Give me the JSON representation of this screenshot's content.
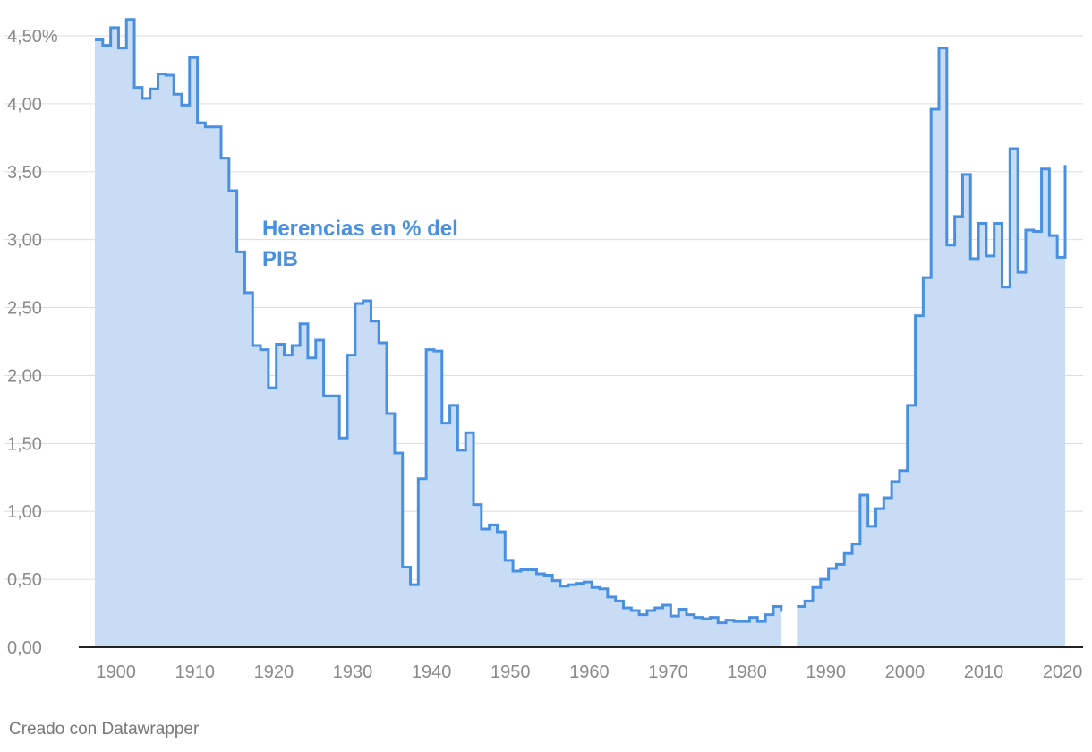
{
  "chart_data": {
    "type": "area",
    "step": true,
    "title": "",
    "xlabel": "",
    "ylabel": "",
    "annotation": [
      "Herencias en % del",
      "PIB"
    ],
    "xlim": [
      1898,
      2021
    ],
    "ylim": [
      0,
      4.5
    ],
    "x_ticks": [
      1900,
      1910,
      1920,
      1930,
      1940,
      1950,
      1960,
      1970,
      1980,
      1990,
      2000,
      2010,
      2020
    ],
    "y_ticks": [
      {
        "value": 0,
        "label": "0,00"
      },
      {
        "value": 0.5,
        "label": "0,50"
      },
      {
        "value": 1,
        "label": "1,00"
      },
      {
        "value": 1.5,
        "label": "1,50"
      },
      {
        "value": 2,
        "label": "2,00"
      },
      {
        "value": 2.5,
        "label": "2,50"
      },
      {
        "value": 3,
        "label": "3,00"
      },
      {
        "value": 3.5,
        "label": "3,50"
      },
      {
        "value": 4,
        "label": "4,00"
      },
      {
        "value": 4.5,
        "label": "4,50%"
      }
    ],
    "grid": true,
    "colors": {
      "line": "#4a90e2",
      "fill": "#c8ddf5",
      "grid": "#dddddd",
      "axis": "#222222",
      "tick": "#8a8a8a"
    },
    "series": [
      {
        "segments": [
          {
            "x": [
              1898,
              1899,
              1900,
              1901,
              1902,
              1903,
              1904,
              1905,
              1906,
              1907,
              1908,
              1909,
              1910,
              1911,
              1912,
              1913,
              1914,
              1915,
              1916,
              1917,
              1918,
              1919,
              1920,
              1921,
              1922,
              1923,
              1924,
              1925,
              1926,
              1927,
              1928,
              1929,
              1930,
              1931,
              1932,
              1933,
              1934,
              1935,
              1936,
              1937,
              1938,
              1939,
              1940,
              1941,
              1942,
              1943,
              1944,
              1945,
              1946,
              1947,
              1948,
              1949,
              1950,
              1951,
              1952,
              1953,
              1954,
              1955,
              1956,
              1957,
              1958,
              1959,
              1960,
              1961,
              1962,
              1963,
              1964,
              1965,
              1966,
              1967,
              1968,
              1969,
              1970,
              1971,
              1972,
              1973,
              1974,
              1975,
              1976,
              1977,
              1978,
              1979,
              1980,
              1981,
              1982,
              1983,
              1984,
              1985
            ],
            "y": [
              4.47,
              4.43,
              4.56,
              4.41,
              4.62,
              4.12,
              4.04,
              4.11,
              4.22,
              4.21,
              4.07,
              3.99,
              4.34,
              3.86,
              3.83,
              3.83,
              3.6,
              3.36,
              2.91,
              2.61,
              2.22,
              2.19,
              1.91,
              2.23,
              2.15,
              2.22,
              2.38,
              2.13,
              2.26,
              1.85,
              1.85,
              1.54,
              2.15,
              2.53,
              2.55,
              2.4,
              2.24,
              1.72,
              1.43,
              0.59,
              0.46,
              1.24,
              2.19,
              2.18,
              1.65,
              1.78,
              1.45,
              1.58,
              1.05,
              0.87,
              0.9,
              0.85,
              0.64,
              0.56,
              0.57,
              0.57,
              0.54,
              0.53,
              0.49,
              0.45,
              0.46,
              0.47,
              0.48,
              0.44,
              0.43,
              0.37,
              0.34,
              0.29,
              0.27,
              0.24,
              0.27,
              0.29,
              0.31,
              0.23,
              0.28,
              0.24,
              0.22,
              0.21,
              0.22,
              0.18,
              0.2,
              0.19,
              0.19,
              0.22,
              0.19,
              0.24,
              0.3,
              0.26
            ]
          },
          {
            "x": [
              1987,
              1988,
              1989,
              1990,
              1991,
              1992,
              1993,
              1994,
              1995,
              1996,
              1997,
              1998,
              1999,
              2000,
              2001,
              2002,
              2003,
              2004,
              2005,
              2006,
              2007,
              2008,
              2009,
              2010,
              2011,
              2012,
              2013,
              2014,
              2015,
              2016,
              2017,
              2018,
              2019,
              2020,
              2021
            ],
            "y": [
              0.3,
              0.34,
              0.44,
              0.5,
              0.58,
              0.61,
              0.69,
              0.76,
              1.12,
              0.89,
              1.02,
              1.1,
              1.22,
              1.3,
              1.78,
              2.44,
              2.72,
              3.96,
              4.41,
              2.96,
              3.17,
              3.48,
              2.86,
              3.12,
              2.88,
              3.12,
              2.65,
              3.67,
              2.76,
              3.07,
              3.06,
              3.52,
              3.03,
              2.87,
              3.55
            ]
          }
        ]
      }
    ]
  },
  "footer": {
    "credit": "Creado con Datawrapper"
  }
}
